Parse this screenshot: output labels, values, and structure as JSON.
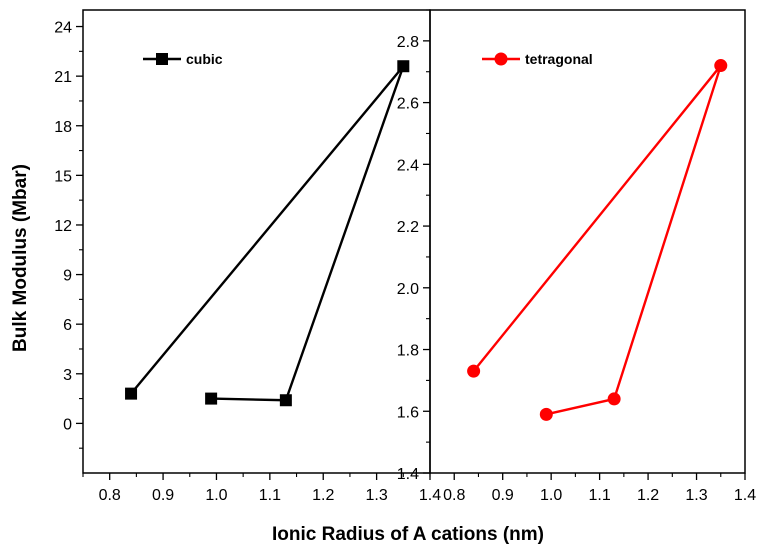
{
  "chart_data": {
    "type": "line",
    "xlabel": "Ionic Radius of A cations (nm)",
    "ylabel": "Bulk Modulus (Mbar)",
    "grid": false,
    "panels": [
      {
        "name": "left",
        "xlim": [
          0.75,
          1.4
        ],
        "ylim": [
          -3,
          25
        ],
        "xticks": [
          "0.8",
          "0.9",
          "1.0",
          "1.1",
          "1.2",
          "1.3",
          "1.4"
        ],
        "yticks": [
          "0",
          "3",
          "6",
          "9",
          "12",
          "15",
          "18",
          "21",
          "24"
        ],
        "legend_position": "top-left",
        "series": [
          {
            "name": "cubic",
            "color": "#000000",
            "marker": "square",
            "points": [
              {
                "x": 0.84,
                "y": 1.8
              },
              {
                "x": 1.35,
                "y": 21.6
              },
              {
                "x": 1.13,
                "y": 1.4
              },
              {
                "x": 0.99,
                "y": 1.5
              }
            ]
          }
        ]
      },
      {
        "name": "right",
        "xlim": [
          0.75,
          1.4
        ],
        "ylim": [
          1.4,
          2.9
        ],
        "xticks": [
          "0.8",
          "0.9",
          "1.0",
          "1.1",
          "1.2",
          "1.3",
          "1.4"
        ],
        "yticks": [
          "1.4",
          "1.6",
          "1.8",
          "2.0",
          "2.2",
          "2.4",
          "2.6",
          "2.8"
        ],
        "legend_position": "top-left",
        "series": [
          {
            "name": "tetragonal",
            "color": "#ff0000",
            "marker": "circle",
            "points": [
              {
                "x": 0.84,
                "y": 1.73
              },
              {
                "x": 1.35,
                "y": 2.72
              },
              {
                "x": 1.13,
                "y": 1.64
              },
              {
                "x": 0.99,
                "y": 1.59
              }
            ]
          }
        ]
      }
    ]
  }
}
